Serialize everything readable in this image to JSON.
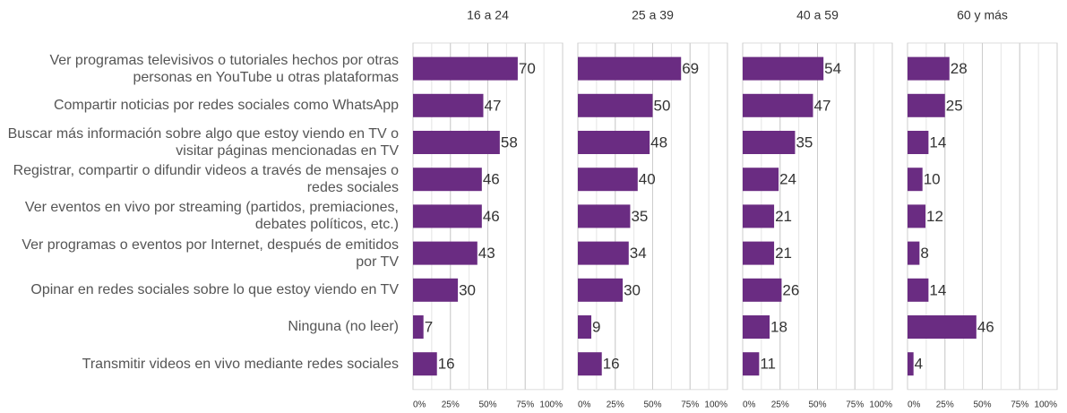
{
  "chart_data": {
    "type": "bar",
    "categories": [
      "Ver programas televisivos o tutoriales hechos por otras personas en YouTube u otras plataformas",
      "Compartir noticias por redes sociales como WhatsApp",
      "Buscar más información sobre algo que estoy viendo en TV o visitar páginas mencionadas en TV",
      "Registrar, compartir o difundir videos a través de mensajes o redes sociales",
      "Ver eventos en vivo por streaming (partidos, premiaciones, debates políticos, etc.)",
      "Ver programas o eventos por Internet, después de emitidos por TV",
      "Opinar en redes sociales sobre lo que estoy viendo en TV",
      "Ninguna (no leer)",
      "Transmitir videos en vivo mediante redes sociales"
    ],
    "series": [
      {
        "name": "16 a 24",
        "color": "#6a2c82",
        "values": [
          70,
          47,
          58,
          46,
          46,
          43,
          30,
          7,
          16
        ]
      },
      {
        "name": "25 a 39",
        "color": "#6a2c82",
        "values": [
          69,
          50,
          48,
          40,
          35,
          34,
          30,
          9,
          16
        ]
      },
      {
        "name": "40 a 59",
        "color": "#6a2c82",
        "values": [
          54,
          47,
          35,
          24,
          21,
          21,
          26,
          18,
          11
        ]
      },
      {
        "name": "60 y más",
        "color": "#6a2c82",
        "values": [
          28,
          25,
          14,
          10,
          12,
          8,
          14,
          46,
          4
        ]
      }
    ],
    "xlim": [
      0,
      100
    ],
    "xticks": [
      {
        "value": 0,
        "label": "0%"
      },
      {
        "value": 25,
        "label": "25%"
      },
      {
        "value": 50,
        "label": "50%"
      },
      {
        "value": 75,
        "label": "75%"
      },
      {
        "value": 100,
        "label": "100%"
      }
    ],
    "grid": true
  }
}
